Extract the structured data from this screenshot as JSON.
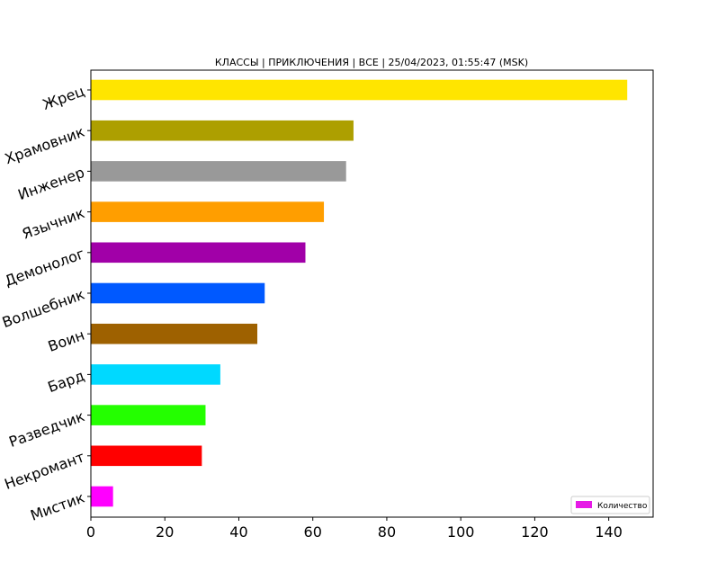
{
  "chart_data": {
    "type": "bar",
    "orientation": "horizontal",
    "title": "КЛАССЫ | ПРИКЛЮЧЕНИЯ | ВСЕ | 25/04/2023, 01:55:47 (MSK)",
    "xlabel": "",
    "ylabel": "",
    "xlim": [
      0,
      152
    ],
    "xticks": [
      0,
      20,
      40,
      60,
      80,
      100,
      120,
      140
    ],
    "grid": false,
    "legend": {
      "position": "bottom-right",
      "label": "Количество",
      "color": "#e619e6"
    },
    "categories": [
      "Жрец",
      "Храмовник",
      "Инженер",
      "Язычник",
      "Демонолог",
      "Волшебник",
      "Воин",
      "Бард",
      "Разведчик",
      "Некромант",
      "Мистик"
    ],
    "values": [
      145,
      71,
      69,
      63,
      58,
      47,
      45,
      35,
      31,
      30,
      6
    ],
    "colors": [
      "#ffe500",
      "#ad9f00",
      "#999999",
      "#ff9e00",
      "#a100a8",
      "#0059ff",
      "#9e6100",
      "#00d9ff",
      "#24ff00",
      "#ff0000",
      "#ff00ff"
    ]
  }
}
